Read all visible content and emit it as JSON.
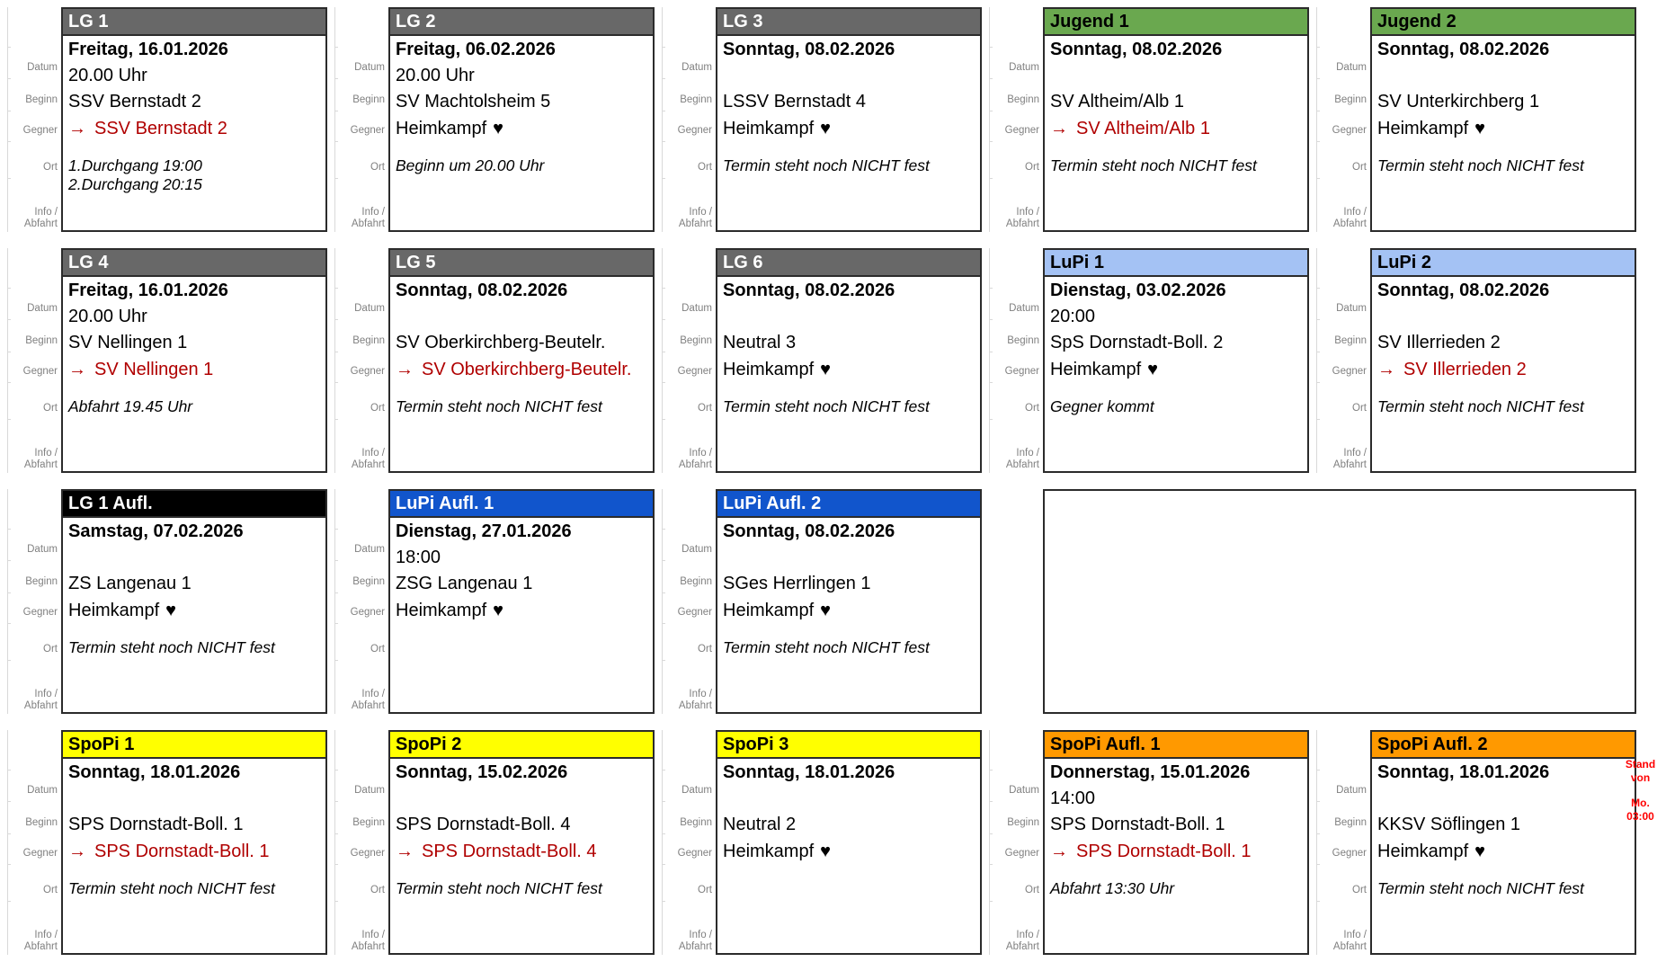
{
  "labels": {
    "datum": "Datum",
    "beginn": "Beginn",
    "gegner": "Gegner",
    "ort": "Ort",
    "info_line1": "Info /",
    "info_line2": "Abfahrt"
  },
  "icons": {
    "away_arrow": "→",
    "heart": "♥"
  },
  "colors": {
    "away_text": "#b00000",
    "label_gray": "#808080",
    "grid_line": "#d9d9d9",
    "stand_note_red": "#ff0000",
    "card_border": "#2b2b2b"
  },
  "card_types": {
    "lg": {
      "bg": "#686868",
      "fg": "#ffffff"
    },
    "jugend": {
      "bg": "#6aa84f",
      "fg": "#000000"
    },
    "lupi": {
      "bg": "#a4c2f4",
      "fg": "#000000"
    },
    "lg_aufl": {
      "bg": "#000000",
      "fg": "#ffffff"
    },
    "lupi_aufl": {
      "bg": "#1155cc",
      "fg": "#ffffff"
    },
    "spopi": {
      "bg": "#ffff00",
      "fg": "#000000"
    },
    "spopi_aufl": {
      "bg": "#ff9900",
      "fg": "#000000"
    }
  },
  "stand_note": {
    "line1": "Stand von",
    "line2": "Mo. 03:00"
  },
  "cards": [
    {
      "id": "lg-1",
      "type": "lg",
      "row": 1,
      "col": 1,
      "title": "LG 1",
      "datum": "Freitag, 16.01.2026",
      "beginn": "20.00 Uhr",
      "gegner": "SSV Bernstadt 2",
      "ort": {
        "kind": "away",
        "text": "SSV Bernstadt 2"
      },
      "info": [
        "1.Durchgang 19:00",
        "2.Durchgang 20:15"
      ]
    },
    {
      "id": "lg-2",
      "type": "lg",
      "row": 1,
      "col": 2,
      "title": "LG 2",
      "datum": "Freitag, 06.02.2026",
      "beginn": "20.00 Uhr",
      "gegner": "SV Machtolsheim 5",
      "ort": {
        "kind": "home",
        "text": "Heimkampf"
      },
      "info": [
        "Beginn um 20.00 Uhr"
      ]
    },
    {
      "id": "lg-3",
      "type": "lg",
      "row": 1,
      "col": 3,
      "title": "LG 3",
      "datum": "Sonntag, 08.02.2026",
      "beginn": "",
      "gegner": "LSSV Bernstadt 4",
      "ort": {
        "kind": "home",
        "text": "Heimkampf"
      },
      "info": [
        "Termin steht noch NICHT fest"
      ]
    },
    {
      "id": "jugend-1",
      "type": "jugend",
      "row": 1,
      "col": 4,
      "title": "Jugend 1",
      "datum": "Sonntag, 08.02.2026",
      "beginn": "",
      "gegner": "SV Altheim/Alb 1",
      "ort": {
        "kind": "away",
        "text": "SV Altheim/Alb 1"
      },
      "info": [
        "Termin steht noch NICHT fest"
      ]
    },
    {
      "id": "jugend-2",
      "type": "jugend",
      "row": 1,
      "col": 5,
      "title": "Jugend 2",
      "datum": "Sonntag, 08.02.2026",
      "beginn": "",
      "gegner": "SV Unterkirchberg 1",
      "ort": {
        "kind": "home",
        "text": "Heimkampf"
      },
      "info": [
        "Termin steht noch NICHT fest"
      ]
    },
    {
      "id": "lg-4",
      "type": "lg",
      "row": 2,
      "col": 1,
      "title": "LG 4",
      "datum": "Freitag, 16.01.2026",
      "beginn": "20.00 Uhr",
      "gegner": "SV Nellingen 1",
      "ort": {
        "kind": "away",
        "text": "SV Nellingen 1"
      },
      "info": [
        "Abfahrt 19.45 Uhr"
      ]
    },
    {
      "id": "lg-5",
      "type": "lg",
      "row": 2,
      "col": 2,
      "title": "LG 5",
      "datum": "Sonntag, 08.02.2026",
      "beginn": "",
      "gegner": "SV Oberkirchberg-Beutelr.",
      "ort": {
        "kind": "away",
        "text": "SV Oberkirchberg-Beutelr."
      },
      "info": [
        "Termin steht noch NICHT fest"
      ]
    },
    {
      "id": "lg-6",
      "type": "lg",
      "row": 2,
      "col": 3,
      "title": "LG 6",
      "datum": "Sonntag, 08.02.2026",
      "beginn": "",
      "gegner": "Neutral 3",
      "ort": {
        "kind": "home",
        "text": "Heimkampf"
      },
      "info": [
        "Termin steht noch NICHT fest"
      ]
    },
    {
      "id": "lupi-1",
      "type": "lupi",
      "row": 2,
      "col": 4,
      "title": "LuPi 1",
      "datum": "Dienstag, 03.02.2026",
      "beginn": "20:00",
      "gegner": "SpS Dornstadt-Boll. 2",
      "ort": {
        "kind": "home",
        "text": "Heimkampf"
      },
      "info": [
        "Gegner kommt"
      ]
    },
    {
      "id": "lupi-2",
      "type": "lupi",
      "row": 2,
      "col": 5,
      "title": "LuPi 2",
      "datum": "Sonntag, 08.02.2026",
      "beginn": "",
      "gegner": "SV Illerrieden 2",
      "ort": {
        "kind": "away",
        "text": "SV Illerrieden 2"
      },
      "info": [
        "Termin steht noch NICHT fest"
      ]
    },
    {
      "id": "lg-1-aufl",
      "type": "lg_aufl",
      "row": 3,
      "col": 1,
      "title": "LG 1 Aufl.",
      "datum": "Samstag, 07.02.2026",
      "beginn": "",
      "gegner": "ZS Langenau 1",
      "ort": {
        "kind": "home",
        "text": "Heimkampf"
      },
      "info": [
        "Termin steht noch NICHT fest"
      ]
    },
    {
      "id": "lupi-aufl-1",
      "type": "lupi_aufl",
      "row": 3,
      "col": 2,
      "title": "LuPi Aufl. 1",
      "datum": "Dienstag, 27.01.2026",
      "beginn": "18:00",
      "gegner": "ZSG Langenau 1",
      "ort": {
        "kind": "home",
        "text": "Heimkampf"
      },
      "info": []
    },
    {
      "id": "lupi-aufl-2",
      "type": "lupi_aufl",
      "row": 3,
      "col": 3,
      "title": "LuPi Aufl. 2",
      "datum": "Sonntag, 08.02.2026",
      "beginn": "",
      "gegner": "SGes Herrlingen 1",
      "ort": {
        "kind": "home",
        "text": "Heimkampf"
      },
      "info": [
        "Termin steht noch NICHT fest"
      ]
    },
    {
      "id": "empty-slot",
      "type": "empty",
      "row": 3,
      "col": 4,
      "colspan": 2
    },
    {
      "id": "spopi-1",
      "type": "spopi",
      "row": 4,
      "col": 1,
      "title": "SpoPi 1",
      "datum": "Sonntag, 18.01.2026",
      "beginn": "",
      "gegner": "SPS Dornstadt-Boll. 1",
      "ort": {
        "kind": "away",
        "text": "SPS Dornstadt-Boll. 1"
      },
      "info": [
        "Termin steht noch NICHT fest"
      ]
    },
    {
      "id": "spopi-2",
      "type": "spopi",
      "row": 4,
      "col": 2,
      "title": "SpoPi 2",
      "datum": "Sonntag, 15.02.2026",
      "beginn": "",
      "gegner": "SPS Dornstadt-Boll. 4",
      "ort": {
        "kind": "away",
        "text": "SPS Dornstadt-Boll. 4"
      },
      "info": [
        "Termin steht noch NICHT fest"
      ]
    },
    {
      "id": "spopi-3",
      "type": "spopi",
      "row": 4,
      "col": 3,
      "title": "SpoPi 3",
      "datum": "Sonntag, 18.01.2026",
      "beginn": "",
      "gegner": "Neutral 2",
      "ort": {
        "kind": "home",
        "text": "Heimkampf"
      },
      "info": []
    },
    {
      "id": "spopi-aufl-1",
      "type": "spopi_aufl",
      "row": 4,
      "col": 4,
      "title": "SpoPi Aufl. 1",
      "datum": "Donnerstag, 15.01.2026",
      "beginn": "14:00",
      "gegner": "SPS Dornstadt-Boll. 1",
      "ort": {
        "kind": "away",
        "text": "SPS Dornstadt-Boll. 1"
      },
      "info": [
        "Abfahrt 13:30 Uhr"
      ]
    },
    {
      "id": "spopi-aufl-2",
      "type": "spopi_aufl",
      "row": 4,
      "col": 5,
      "title": "SpoPi Aufl. 2",
      "datum": "Sonntag, 18.01.2026",
      "beginn": "",
      "gegner": "KKSV Söflingen 1",
      "ort": {
        "kind": "home",
        "text": "Heimkampf"
      },
      "info": [
        "Termin steht noch NICHT fest"
      ]
    }
  ]
}
